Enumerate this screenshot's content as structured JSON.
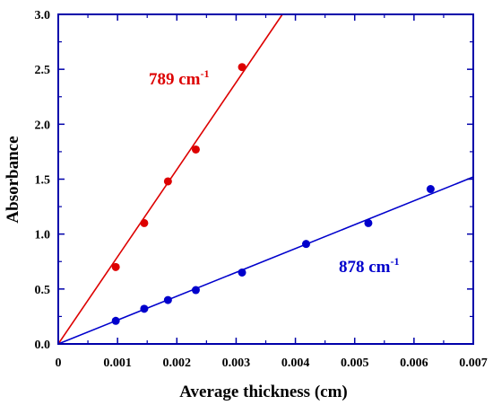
{
  "chart_data": {
    "type": "scatter",
    "xlabel": "Average thickness (cm)",
    "ylabel": "Absorbance",
    "xlim": [
      0,
      0.007
    ],
    "ylim": [
      0,
      3.0
    ],
    "x_ticks": [
      0,
      0.001,
      0.002,
      0.003,
      0.004,
      0.005,
      0.006,
      0.007
    ],
    "x_tick_labels": [
      "0",
      "0.001",
      "0.002",
      "0.003",
      "0.004",
      "0.005",
      "0.006",
      "0.007"
    ],
    "y_ticks": [
      0,
      0.5,
      1.0,
      1.5,
      2.0,
      2.5,
      3.0
    ],
    "y_tick_labels": [
      "0.0",
      "0.5",
      "1.0",
      "1.5",
      "2.0",
      "2.5",
      "3.0"
    ],
    "grid": false,
    "series": [
      {
        "label_main": "789 cm",
        "label_sup": "-1",
        "color": "#dd0000",
        "points": [
          {
            "x": 0.00097,
            "y": 0.7
          },
          {
            "x": 0.00145,
            "y": 1.1
          },
          {
            "x": 0.00185,
            "y": 1.48
          },
          {
            "x": 0.00232,
            "y": 1.77
          },
          {
            "x": 0.0031,
            "y": 2.52
          }
        ],
        "fit": {
          "x": [
            0,
            0.00378
          ],
          "y": [
            0,
            3.0
          ]
        }
      },
      {
        "label_main": "878 cm",
        "label_sup": "-1",
        "color": "#0000cc",
        "points": [
          {
            "x": 0.00097,
            "y": 0.21
          },
          {
            "x": 0.00145,
            "y": 0.32
          },
          {
            "x": 0.00185,
            "y": 0.4
          },
          {
            "x": 0.00232,
            "y": 0.49
          },
          {
            "x": 0.0031,
            "y": 0.65
          },
          {
            "x": 0.00418,
            "y": 0.91
          },
          {
            "x": 0.00523,
            "y": 1.1
          },
          {
            "x": 0.00628,
            "y": 1.41
          }
        ],
        "fit": {
          "x": [
            0,
            0.007
          ],
          "y": [
            0,
            1.52
          ]
        }
      }
    ],
    "frame_color": "#0000aa"
  }
}
